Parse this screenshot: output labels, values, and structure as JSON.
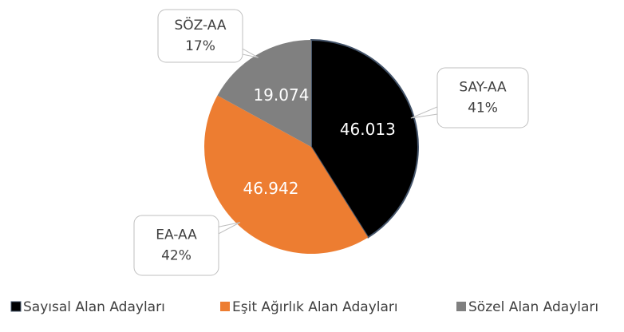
{
  "chart_data": {
    "type": "pie",
    "categories": [
      "Sayısal Alan Adayları",
      "Eşit Ağırlık Alan Adayları",
      "Sözel Alan Adayları"
    ],
    "values": [
      46013,
      46942,
      19074
    ],
    "value_labels": [
      "46.013",
      "46.942",
      "19.074"
    ],
    "callout_labels": [
      "SAY-AA",
      "EA-AA",
      "SÖZ-AA"
    ],
    "percent_labels": [
      "41%",
      "42%",
      "17%"
    ],
    "colors": [
      "#000000",
      "#ed7d31",
      "#808080"
    ]
  }
}
